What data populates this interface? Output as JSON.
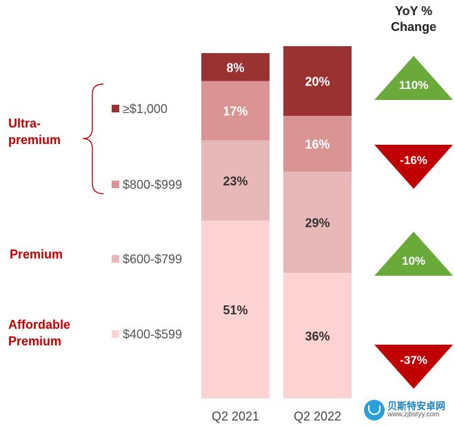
{
  "chart_data": {
    "type": "stacked-bar",
    "categories": [
      "Q2 2021",
      "Q2 2022"
    ],
    "ylim": [
      0,
      100
    ],
    "series": [
      {
        "name": "$400-$599",
        "values": [
          51,
          36
        ],
        "color": "#fdd2d3",
        "text_color": "#333333"
      },
      {
        "name": "$600-$799",
        "values": [
          23,
          29
        ],
        "color": "#e8b8b9",
        "text_color": "#333333"
      },
      {
        "name": "$800-$999",
        "values": [
          17,
          16
        ],
        "color": "#da9494",
        "text_color": "#ffffff"
      },
      {
        "name": "≥$1,000",
        "values": [
          8,
          20
        ],
        "color": "#9b3232",
        "text_color": "#ffffff"
      }
    ],
    "legend_order": [
      "≥$1,000",
      "$800-$999",
      "$600-$799",
      "$400-$599"
    ],
    "yoy_title": "YoY %\nChange",
    "yoy": [
      {
        "segment": "≥$1,000",
        "value": "110%",
        "direction": "up",
        "color": "#6aaa3a"
      },
      {
        "segment": "$800-$999",
        "value": "-16%",
        "direction": "down",
        "color": "#c00000"
      },
      {
        "segment": "$600-$799",
        "value": "10%",
        "direction": "up",
        "color": "#6aaa3a"
      },
      {
        "segment": "$400-$599",
        "value": "-37%",
        "direction": "down",
        "color": "#c00000"
      }
    ],
    "groups": [
      {
        "label": "Ultra-\npremium",
        "color": "#c00000"
      },
      {
        "label": "Premium",
        "color": "#c00000"
      },
      {
        "label": "Affordable\nPremium",
        "color": "#c00000"
      }
    ]
  },
  "watermark": {
    "title": "贝斯特安卓网",
    "url": "www.zjbstyy.com"
  }
}
